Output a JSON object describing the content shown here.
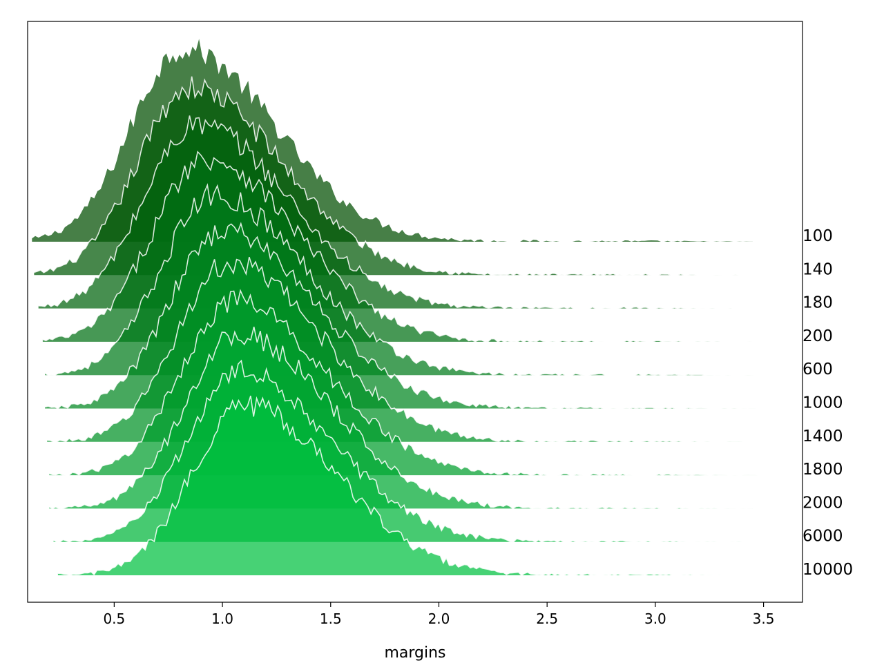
{
  "chart_data": {
    "type": "area",
    "chart_kind": "ridgeline",
    "title": "",
    "xlabel": "margins",
    "ylabel": "",
    "xlim": [
      0.1,
      3.68
    ],
    "x_ticks": [
      0.5,
      1.0,
      1.5,
      2.0,
      2.5,
      3.0,
      3.5
    ],
    "x_tick_labels": [
      "0.5",
      "1.0",
      "1.5",
      "2.0",
      "2.5",
      "3.0",
      "3.5"
    ],
    "grid": false,
    "legend": "none",
    "row_labels_position": "right",
    "fill_color_range": [
      "#004d00",
      "#00c040"
    ],
    "outline_color": "#ffffff",
    "series": [
      {
        "name": "100",
        "peak_x": 0.82,
        "x_min": 0.12,
        "x_max": 3.45,
        "rel_height": 1.0
      },
      {
        "name": "140",
        "peak_x": 0.85,
        "x_min": 0.13,
        "x_max": 3.4,
        "rel_height": 0.97
      },
      {
        "name": "180",
        "peak_x": 0.88,
        "x_min": 0.15,
        "x_max": 3.35,
        "rel_height": 0.95
      },
      {
        "name": "200",
        "peak_x": 0.92,
        "x_min": 0.17,
        "x_max": 3.45,
        "rel_height": 0.95
      },
      {
        "name": "600",
        "peak_x": 0.96,
        "x_min": 0.18,
        "x_max": 3.55,
        "rel_height": 0.93
      },
      {
        "name": "1000",
        "peak_x": 1.0,
        "x_min": 0.18,
        "x_max": 3.5,
        "rel_height": 0.92
      },
      {
        "name": "1400",
        "peak_x": 1.03,
        "x_min": 0.19,
        "x_max": 3.4,
        "rel_height": 0.92
      },
      {
        "name": "1800",
        "peak_x": 1.05,
        "x_min": 0.2,
        "x_max": 3.55,
        "rel_height": 0.9
      },
      {
        "name": "2000",
        "peak_x": 1.07,
        "x_min": 0.2,
        "x_max": 3.45,
        "rel_height": 0.9
      },
      {
        "name": "6000",
        "peak_x": 1.08,
        "x_min": 0.22,
        "x_max": 3.4,
        "rel_height": 0.88
      },
      {
        "name": "10000",
        "peak_x": 1.1,
        "x_min": 0.24,
        "x_max": 3.3,
        "rel_height": 0.88
      }
    ]
  }
}
